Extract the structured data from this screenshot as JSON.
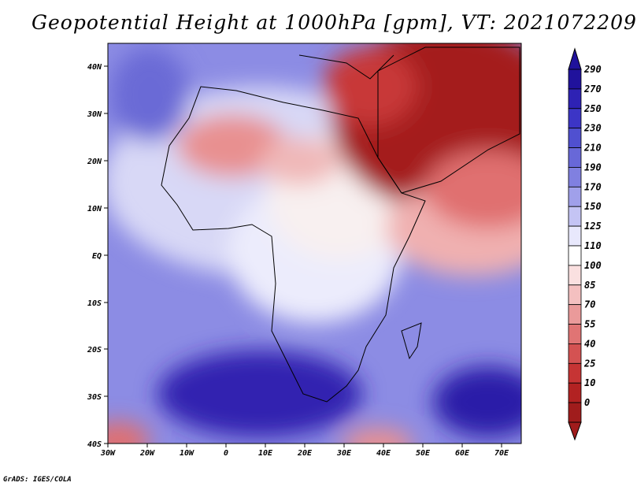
{
  "title": "Geopotential Height at 1000hPa [gpm], VT: 2021072209",
  "footer": "GrADS: IGES/COLA",
  "lat_labels": [
    "40N",
    "30N",
    "20N",
    "10N",
    "EQ",
    "10S",
    "20S",
    "30S",
    "40S"
  ],
  "lon_labels": [
    "30W",
    "20W",
    "10W",
    "0",
    "10E",
    "20E",
    "30E",
    "40E",
    "50E",
    "60E",
    "70E"
  ],
  "colorbar": {
    "levels": [
      "290",
      "270",
      "250",
      "230",
      "210",
      "190",
      "170",
      "150",
      "125",
      "110",
      "100",
      "85",
      "70",
      "55",
      "40",
      "25",
      "10",
      "0"
    ],
    "colors": [
      "#20129c",
      "#2e22b4",
      "#3c35c6",
      "#5050d0",
      "#6868d8",
      "#8080e0",
      "#a0a0ea",
      "#c4c4f4",
      "#e8e8fc",
      "#ffffff",
      "#fae0e0",
      "#f4c0c0",
      "#ea9a9a",
      "#e07474",
      "#d45252",
      "#c63434",
      "#b22222",
      "#a01c1c"
    ]
  },
  "colors": {
    "high": "#2010a0",
    "low": "#a01c1c",
    "neutral": "#ffffff"
  }
}
